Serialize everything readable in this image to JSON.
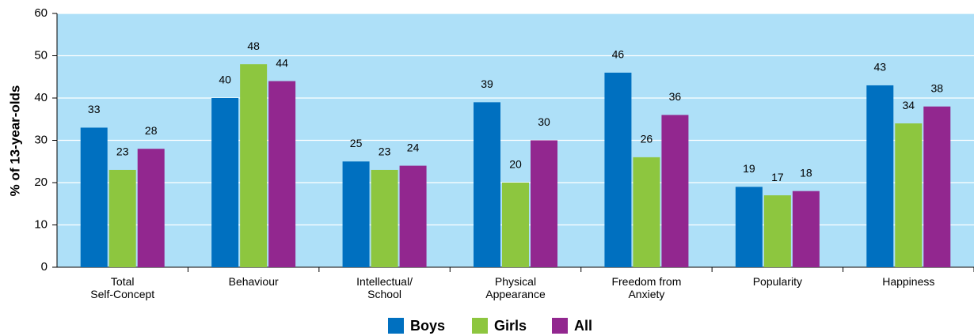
{
  "chart_data": {
    "type": "bar",
    "y_label": "% of 13-year-olds",
    "categories": [
      "Total\nSelf-Concept",
      "Behaviour",
      "Intellectual/\nSchool",
      "Physical\nAppearance",
      "Freedom from\nAnxiety",
      "Popularity",
      "Happiness"
    ],
    "series": [
      {
        "name": "Boys",
        "color": "#0070c0",
        "values": [
          33,
          40,
          25,
          39,
          46,
          19,
          43
        ]
      },
      {
        "name": "Girls",
        "color": "#8dc63f",
        "values": [
          23,
          48,
          23,
          20,
          26,
          17,
          34
        ]
      },
      {
        "name": "All",
        "color": "#92278f",
        "values": [
          28,
          44,
          24,
          30,
          36,
          18,
          38
        ]
      }
    ],
    "ylim": [
      0,
      60
    ],
    "yticks": [
      0,
      10,
      20,
      30,
      40,
      50,
      60
    ],
    "grid": true,
    "legend": "bottom",
    "plot_background": "#aee0f8"
  }
}
